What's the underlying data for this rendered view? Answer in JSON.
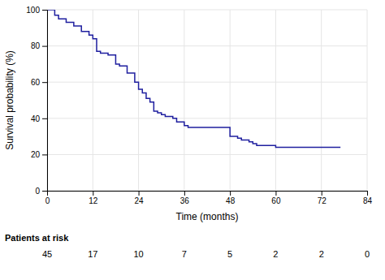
{
  "chart_data": {
    "type": "step",
    "xlabel": "Time (months)",
    "ylabel": "Survival probability (%)",
    "color": "#1f1f9f",
    "grid": true,
    "xlim": [
      0,
      84
    ],
    "ylim": [
      0,
      100
    ],
    "xticks": [
      0,
      12,
      24,
      36,
      48,
      60,
      72,
      84
    ],
    "yticks": [
      0,
      20,
      40,
      60,
      80,
      100
    ],
    "x": [
      0,
      2,
      3,
      5,
      7,
      9,
      11,
      12,
      13,
      14,
      16,
      18,
      19,
      21,
      23,
      24,
      25,
      26,
      27,
      28,
      29,
      30,
      31,
      33,
      34,
      36,
      37,
      38,
      39,
      40,
      41,
      42,
      43,
      44,
      45,
      46,
      47,
      48,
      49,
      50,
      51,
      53,
      54,
      55,
      60,
      61,
      62,
      63,
      72,
      73,
      77
    ],
    "values": [
      100,
      97,
      95,
      93,
      91,
      88,
      86,
      84,
      77,
      76,
      75,
      70,
      69,
      65,
      60,
      56,
      54,
      51,
      49,
      44,
      43,
      42,
      41,
      40,
      38,
      36,
      35,
      35,
      35,
      35,
      35,
      35,
      35,
      35,
      35,
      35,
      35,
      30,
      30,
      29,
      28,
      27,
      26,
      25,
      24,
      24,
      24,
      24,
      24,
      24,
      24
    ],
    "patients_at_risk": {
      "title": "Patients at risk",
      "x": [
        0,
        12,
        24,
        36,
        48,
        60,
        72,
        84
      ],
      "values": [
        45,
        17,
        10,
        7,
        5,
        2,
        2,
        0
      ]
    }
  }
}
